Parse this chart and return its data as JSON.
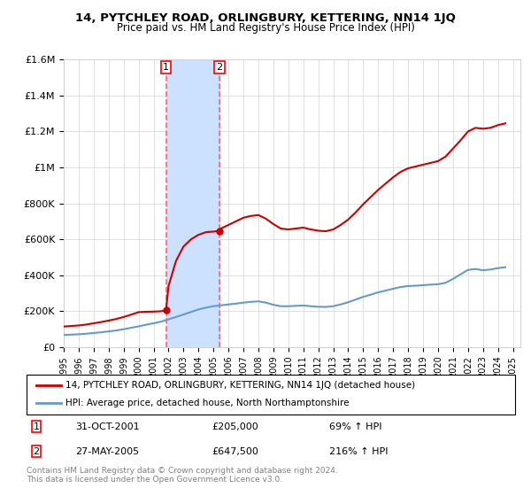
{
  "title": "14, PYTCHLEY ROAD, ORLINGBURY, KETTERING, NN14 1JQ",
  "subtitle": "Price paid vs. HM Land Registry's House Price Index (HPI)",
  "legend_line1": "14, PYTCHLEY ROAD, ORLINGBURY, KETTERING, NN14 1JQ (detached house)",
  "legend_line2": "HPI: Average price, detached house, North Northamptonshire",
  "sale1_label": "1",
  "sale1_date": "31-OCT-2001",
  "sale1_price": "£205,000",
  "sale1_hpi": "69% ↑ HPI",
  "sale2_label": "2",
  "sale2_date": "27-MAY-2005",
  "sale2_price": "£647,500",
  "sale2_hpi": "216% ↑ HPI",
  "footnote": "Contains HM Land Registry data © Crown copyright and database right 2024.\nThis data is licensed under the Open Government Licence v3.0.",
  "sale1_x": 2001.83,
  "sale2_x": 2005.4,
  "red_line_color": "#cc0000",
  "blue_line_color": "#6699cc",
  "shade_color": "#cce0ff",
  "vline_color": "#ff6666",
  "marker_color": "#cc0000",
  "ylim": [
    0,
    1600000
  ],
  "xlim": [
    1995,
    2025.5
  ],
  "yticks": [
    0,
    200000,
    400000,
    600000,
    800000,
    1000000,
    1200000,
    1400000,
    1600000
  ],
  "ytick_labels": [
    "£0",
    "£200K",
    "£400K",
    "£600K",
    "£800K",
    "£1M",
    "£1.2M",
    "£1.4M",
    "£1.6M"
  ],
  "xticks": [
    1995,
    1996,
    1997,
    1998,
    1999,
    2000,
    2001,
    2002,
    2003,
    2004,
    2005,
    2006,
    2007,
    2008,
    2009,
    2010,
    2011,
    2012,
    2013,
    2014,
    2015,
    2016,
    2017,
    2018,
    2019,
    2020,
    2021,
    2022,
    2023,
    2024,
    2025
  ],
  "hpi_x": [
    1995.0,
    1995.5,
    1996.0,
    1996.5,
    1997.0,
    1997.5,
    1998.0,
    1998.5,
    1999.0,
    1999.5,
    2000.0,
    2000.5,
    2001.0,
    2001.5,
    2002.0,
    2002.5,
    2003.0,
    2003.5,
    2004.0,
    2004.5,
    2005.0,
    2005.5,
    2006.0,
    2006.5,
    2007.0,
    2007.5,
    2008.0,
    2008.5,
    2009.0,
    2009.5,
    2010.0,
    2010.5,
    2011.0,
    2011.5,
    2012.0,
    2012.5,
    2013.0,
    2013.5,
    2014.0,
    2014.5,
    2015.0,
    2015.5,
    2016.0,
    2016.5,
    2017.0,
    2017.5,
    2018.0,
    2018.5,
    2019.0,
    2019.5,
    2020.0,
    2020.5,
    2021.0,
    2021.5,
    2022.0,
    2022.5,
    2023.0,
    2023.5,
    2024.0,
    2024.5
  ],
  "hpi_y": [
    68000,
    70000,
    72000,
    75000,
    79000,
    83000,
    88000,
    93000,
    100000,
    108000,
    116000,
    125000,
    133000,
    142000,
    155000,
    168000,
    182000,
    196000,
    210000,
    220000,
    228000,
    233000,
    238000,
    242000,
    248000,
    252000,
    255000,
    248000,
    236000,
    228000,
    228000,
    230000,
    232000,
    228000,
    225000,
    224000,
    228000,
    238000,
    250000,
    265000,
    280000,
    292000,
    305000,
    315000,
    325000,
    335000,
    340000,
    342000,
    345000,
    348000,
    350000,
    358000,
    380000,
    405000,
    430000,
    435000,
    428000,
    432000,
    440000,
    445000
  ],
  "red_x": [
    1995.0,
    1995.5,
    1996.0,
    1996.5,
    1997.0,
    1997.5,
    1998.0,
    1998.5,
    1999.0,
    1999.5,
    2000.0,
    2000.5,
    2001.0,
    2001.5,
    2001.83,
    2002.0,
    2002.5,
    2003.0,
    2003.5,
    2004.0,
    2004.5,
    2005.0,
    2005.4,
    2005.5,
    2006.0,
    2006.5,
    2007.0,
    2007.5,
    2008.0,
    2008.5,
    2009.0,
    2009.5,
    2010.0,
    2010.5,
    2011.0,
    2011.5,
    2012.0,
    2012.5,
    2013.0,
    2013.5,
    2014.0,
    2014.5,
    2015.0,
    2015.5,
    2016.0,
    2016.5,
    2017.0,
    2017.5,
    2018.0,
    2018.5,
    2019.0,
    2019.5,
    2020.0,
    2020.5,
    2021.0,
    2021.5,
    2022.0,
    2022.5,
    2023.0,
    2023.5,
    2024.0,
    2024.5
  ],
  "red_y": [
    115000,
    118000,
    121000,
    126000,
    133000,
    140000,
    148000,
    157000,
    168000,
    181000,
    195000,
    197000,
    198000,
    200000,
    205000,
    340000,
    480000,
    560000,
    600000,
    625000,
    640000,
    643000,
    647500,
    660000,
    680000,
    700000,
    720000,
    730000,
    735000,
    715000,
    685000,
    660000,
    655000,
    660000,
    665000,
    655000,
    648000,
    645000,
    655000,
    680000,
    710000,
    750000,
    795000,
    835000,
    875000,
    910000,
    945000,
    975000,
    995000,
    1005000,
    1015000,
    1025000,
    1035000,
    1060000,
    1105000,
    1150000,
    1200000,
    1220000,
    1215000,
    1220000,
    1235000,
    1245000
  ]
}
